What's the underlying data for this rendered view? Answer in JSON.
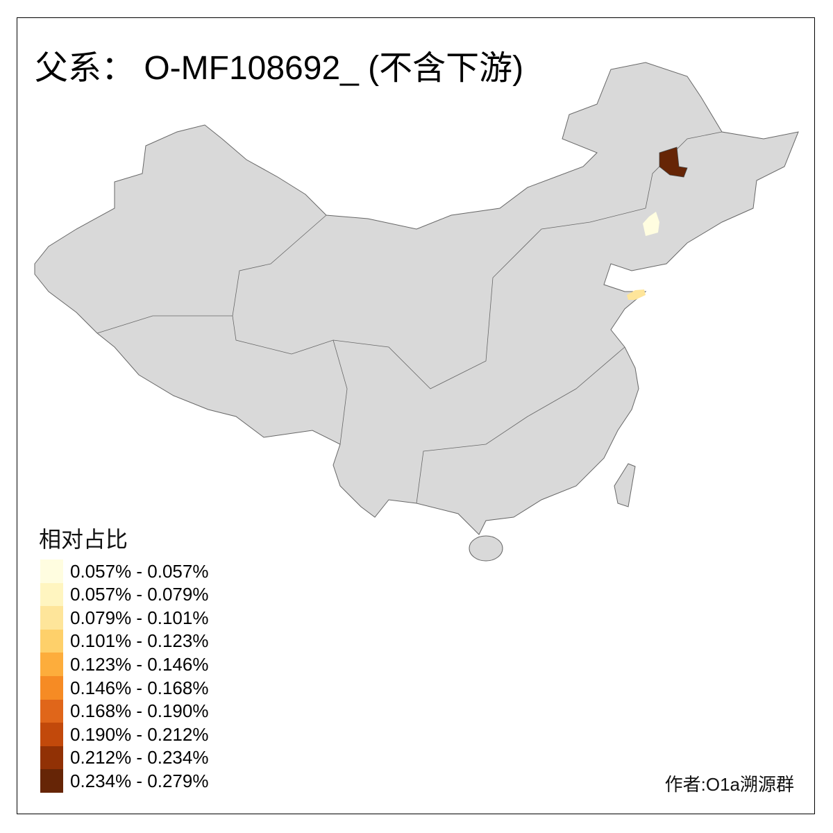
{
  "title": "父系： O-MF108692_ (不含下游)",
  "legend": {
    "title": "相对占比",
    "items": [
      {
        "label": "0.057% - 0.057%",
        "color": "#fffde0"
      },
      {
        "label": "0.057% - 0.079%",
        "color": "#fff5c0"
      },
      {
        "label": "0.079% - 0.101%",
        "color": "#fee59a"
      },
      {
        "label": "0.101% - 0.123%",
        "color": "#fed06a"
      },
      {
        "label": "0.123% - 0.146%",
        "color": "#fdad3c"
      },
      {
        "label": "0.146% - 0.168%",
        "color": "#f68b24"
      },
      {
        "label": "0.168% - 0.190%",
        "color": "#e0661a"
      },
      {
        "label": "0.190% - 0.212%",
        "color": "#c2490b"
      },
      {
        "label": "0.212% - 0.234%",
        "color": "#913105"
      },
      {
        "label": "0.234% - 0.279%",
        "color": "#662506"
      }
    ]
  },
  "map": {
    "base_color": "#d9d9d9",
    "border_color": "#666666"
  },
  "author": "作者:O1a溯源群"
}
